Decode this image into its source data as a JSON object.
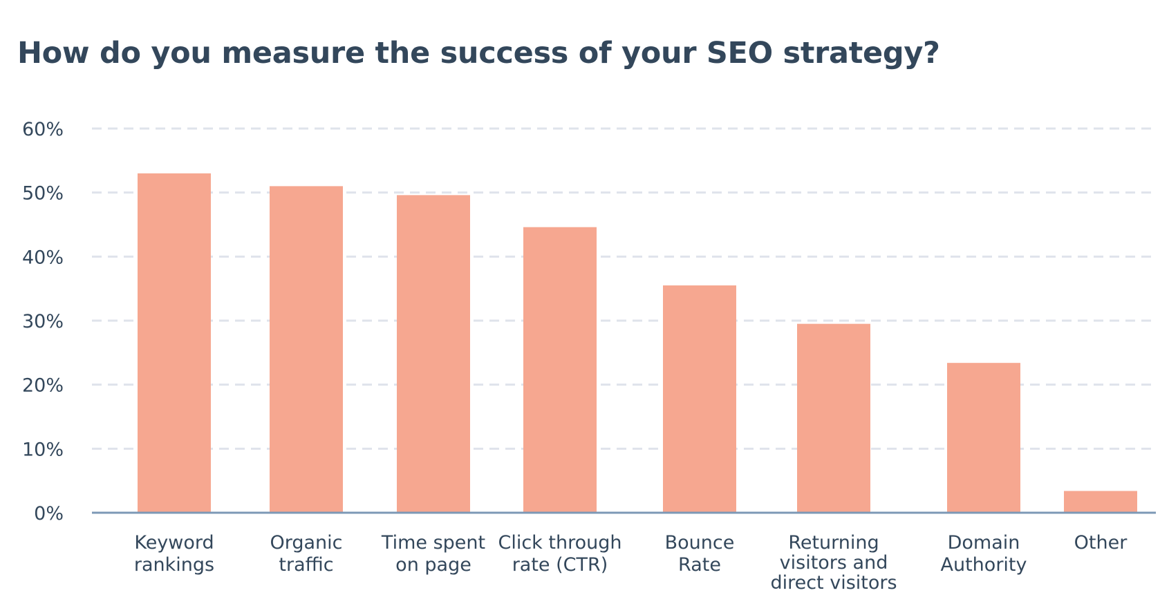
{
  "chart_data": {
    "type": "bar",
    "title": "How do you measure the success of your SEO strategy?",
    "categories": [
      [
        "Keyword",
        "rankings"
      ],
      [
        "Organic",
        "traffic"
      ],
      [
        "Time spent",
        "on page"
      ],
      [
        "Click through",
        "rate (CTR)"
      ],
      [
        "Bounce",
        "Rate"
      ],
      [
        "Returning",
        "visitors and",
        "direct visitors"
      ],
      [
        "Domain",
        "Authority"
      ],
      [
        "Other"
      ]
    ],
    "values": [
      53,
      51,
      49.6,
      44.6,
      35.5,
      29.5,
      23.4,
      3.4
    ],
    "yticks": [
      "0%",
      "10%",
      "20%",
      "30%",
      "40%",
      "50%",
      "60%"
    ],
    "ylim": [
      0,
      60
    ],
    "grid": true,
    "colors": {
      "bar": "#f6a790",
      "grid": "#dfe3eb",
      "axis": "#7c98b6",
      "text": "#33475b"
    }
  }
}
